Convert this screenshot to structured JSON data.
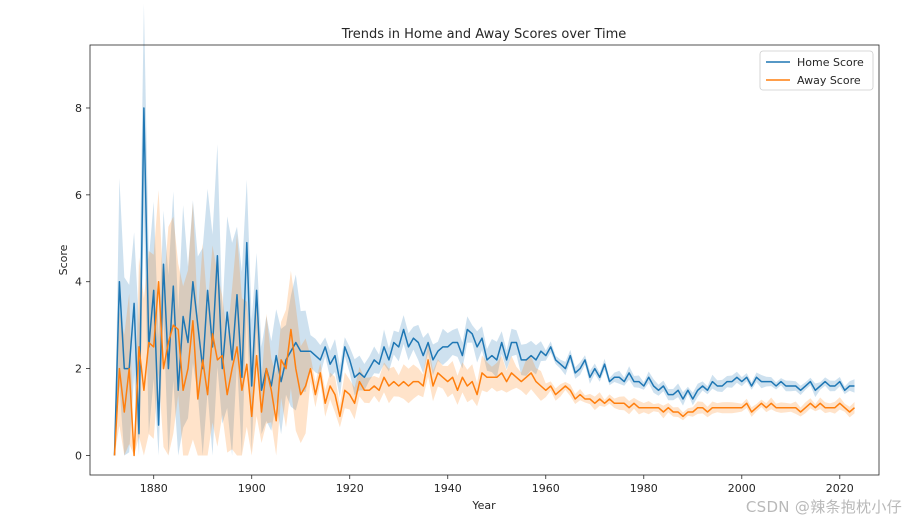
{
  "chart_data": {
    "type": "line",
    "title": "Trends in Home and Away Scores over Time",
    "xlabel": "Year",
    "ylabel": "Score",
    "xlim": [
      1867,
      2028
    ],
    "ylim": [
      -0.45,
      9.45
    ],
    "xticks": [
      1880,
      1900,
      1920,
      1940,
      1960,
      1980,
      2000,
      2020
    ],
    "yticks": [
      0,
      2,
      4,
      6,
      8
    ],
    "grid": false,
    "legend_position": "top-right",
    "series": [
      {
        "name": "Home Score",
        "color": "#1f77b4",
        "band_color": "#1f77b4",
        "points": [
          [
            1872,
            0.0
          ],
          [
            1873,
            4.0
          ],
          [
            1874,
            2.0
          ],
          [
            1875,
            2.0
          ],
          [
            1876,
            3.5
          ],
          [
            1877,
            0.5
          ],
          [
            1878,
            8.0
          ],
          [
            1879,
            2.5
          ],
          [
            1880,
            3.8
          ],
          [
            1881,
            0.7
          ],
          [
            1882,
            4.4
          ],
          [
            1883,
            2.0
          ],
          [
            1884,
            3.9
          ],
          [
            1885,
            1.5
          ],
          [
            1886,
            3.2
          ],
          [
            1887,
            2.6
          ],
          [
            1888,
            4.0
          ],
          [
            1889,
            3.0
          ],
          [
            1890,
            2.0
          ],
          [
            1891,
            3.8
          ],
          [
            1892,
            2.5
          ],
          [
            1893,
            4.6
          ],
          [
            1894,
            2.0
          ],
          [
            1895,
            3.3
          ],
          [
            1896,
            2.2
          ],
          [
            1897,
            3.7
          ],
          [
            1898,
            1.8
          ],
          [
            1899,
            4.9
          ],
          [
            1900,
            1.6
          ],
          [
            1901,
            3.8
          ],
          [
            1902,
            1.5
          ],
          [
            1903,
            2.0
          ],
          [
            1904,
            1.6
          ],
          [
            1905,
            2.3
          ],
          [
            1906,
            1.7
          ],
          [
            1907,
            2.2
          ],
          [
            1908,
            2.4
          ],
          [
            1909,
            2.6
          ],
          [
            1910,
            2.4
          ],
          [
            1911,
            2.4
          ],
          [
            1912,
            2.4
          ],
          [
            1913,
            2.3
          ],
          [
            1914,
            2.2
          ],
          [
            1915,
            2.5
          ],
          [
            1916,
            2.1
          ],
          [
            1917,
            2.3
          ],
          [
            1918,
            1.7
          ],
          [
            1919,
            2.5
          ],
          [
            1920,
            2.2
          ],
          [
            1921,
            1.8
          ],
          [
            1922,
            1.9
          ],
          [
            1923,
            1.8
          ],
          [
            1924,
            2.0
          ],
          [
            1925,
            2.2
          ],
          [
            1926,
            2.1
          ],
          [
            1927,
            2.5
          ],
          [
            1928,
            2.2
          ],
          [
            1929,
            2.6
          ],
          [
            1930,
            2.5
          ],
          [
            1931,
            2.9
          ],
          [
            1932,
            2.5
          ],
          [
            1933,
            2.7
          ],
          [
            1934,
            2.6
          ],
          [
            1935,
            2.3
          ],
          [
            1936,
            2.6
          ],
          [
            1937,
            2.2
          ],
          [
            1938,
            2.4
          ],
          [
            1939,
            2.5
          ],
          [
            1940,
            2.5
          ],
          [
            1941,
            2.6
          ],
          [
            1942,
            2.6
          ],
          [
            1943,
            2.3
          ],
          [
            1944,
            2.9
          ],
          [
            1945,
            2.8
          ],
          [
            1946,
            2.5
          ],
          [
            1947,
            2.7
          ],
          [
            1948,
            2.2
          ],
          [
            1949,
            2.3
          ],
          [
            1950,
            2.2
          ],
          [
            1951,
            2.6
          ],
          [
            1952,
            2.2
          ],
          [
            1953,
            2.6
          ],
          [
            1954,
            2.6
          ],
          [
            1955,
            2.2
          ],
          [
            1956,
            2.2
          ],
          [
            1957,
            2.3
          ],
          [
            1958,
            2.2
          ],
          [
            1959,
            2.4
          ],
          [
            1960,
            2.3
          ],
          [
            1961,
            2.5
          ],
          [
            1962,
            2.2
          ],
          [
            1963,
            2.1
          ],
          [
            1964,
            2.0
          ],
          [
            1965,
            2.3
          ],
          [
            1966,
            1.9
          ],
          [
            1967,
            2.0
          ],
          [
            1968,
            2.2
          ],
          [
            1969,
            1.8
          ],
          [
            1970,
            2.0
          ],
          [
            1971,
            1.8
          ],
          [
            1972,
            2.1
          ],
          [
            1973,
            1.7
          ],
          [
            1974,
            1.8
          ],
          [
            1975,
            1.8
          ],
          [
            1976,
            1.7
          ],
          [
            1977,
            1.9
          ],
          [
            1978,
            1.7
          ],
          [
            1979,
            1.7
          ],
          [
            1980,
            1.6
          ],
          [
            1981,
            1.8
          ],
          [
            1982,
            1.6
          ],
          [
            1983,
            1.5
          ],
          [
            1984,
            1.6
          ],
          [
            1985,
            1.4
          ],
          [
            1986,
            1.4
          ],
          [
            1987,
            1.5
          ],
          [
            1988,
            1.3
          ],
          [
            1989,
            1.5
          ],
          [
            1990,
            1.3
          ],
          [
            1991,
            1.5
          ],
          [
            1992,
            1.6
          ],
          [
            1993,
            1.5
          ],
          [
            1994,
            1.7
          ],
          [
            1995,
            1.6
          ],
          [
            1996,
            1.6
          ],
          [
            1997,
            1.7
          ],
          [
            1998,
            1.7
          ],
          [
            1999,
            1.8
          ],
          [
            2000,
            1.7
          ],
          [
            2001,
            1.8
          ],
          [
            2002,
            1.6
          ],
          [
            2003,
            1.8
          ],
          [
            2004,
            1.7
          ],
          [
            2005,
            1.7
          ],
          [
            2006,
            1.7
          ],
          [
            2007,
            1.6
          ],
          [
            2008,
            1.7
          ],
          [
            2009,
            1.6
          ],
          [
            2010,
            1.6
          ],
          [
            2011,
            1.6
          ],
          [
            2012,
            1.5
          ],
          [
            2013,
            1.6
          ],
          [
            2014,
            1.7
          ],
          [
            2015,
            1.5
          ],
          [
            2016,
            1.6
          ],
          [
            2017,
            1.7
          ],
          [
            2018,
            1.6
          ],
          [
            2019,
            1.6
          ],
          [
            2020,
            1.7
          ],
          [
            2021,
            1.5
          ],
          [
            2022,
            1.6
          ],
          [
            2023,
            1.6
          ]
        ]
      },
      {
        "name": "Away Score",
        "color": "#ff7f0e",
        "band_color": "#ff7f0e",
        "points": [
          [
            1872,
            0.0
          ],
          [
            1873,
            2.0
          ],
          [
            1874,
            1.0
          ],
          [
            1875,
            2.0
          ],
          [
            1876,
            0.0
          ],
          [
            1877,
            2.5
          ],
          [
            1878,
            1.5
          ],
          [
            1879,
            2.6
          ],
          [
            1880,
            2.5
          ],
          [
            1881,
            4.0
          ],
          [
            1882,
            2.0
          ],
          [
            1883,
            2.6
          ],
          [
            1884,
            3.0
          ],
          [
            1885,
            2.9
          ],
          [
            1886,
            1.5
          ],
          [
            1887,
            2.0
          ],
          [
            1888,
            3.1
          ],
          [
            1889,
            1.3
          ],
          [
            1890,
            2.2
          ],
          [
            1891,
            1.4
          ],
          [
            1892,
            2.8
          ],
          [
            1893,
            2.2
          ],
          [
            1894,
            2.3
          ],
          [
            1895,
            1.4
          ],
          [
            1896,
            2.0
          ],
          [
            1897,
            2.5
          ],
          [
            1898,
            1.5
          ],
          [
            1899,
            2.1
          ],
          [
            1900,
            0.9
          ],
          [
            1901,
            2.3
          ],
          [
            1902,
            1.0
          ],
          [
            1903,
            2.0
          ],
          [
            1904,
            1.5
          ],
          [
            1905,
            0.8
          ],
          [
            1906,
            2.2
          ],
          [
            1907,
            2.0
          ],
          [
            1908,
            2.9
          ],
          [
            1909,
            2.0
          ],
          [
            1910,
            1.4
          ],
          [
            1911,
            1.6
          ],
          [
            1912,
            2.0
          ],
          [
            1913,
            1.4
          ],
          [
            1914,
            1.9
          ],
          [
            1915,
            1.2
          ],
          [
            1916,
            1.6
          ],
          [
            1917,
            1.4
          ],
          [
            1918,
            0.9
          ],
          [
            1919,
            1.5
          ],
          [
            1920,
            1.4
          ],
          [
            1921,
            1.2
          ],
          [
            1922,
            1.7
          ],
          [
            1923,
            1.5
          ],
          [
            1924,
            1.5
          ],
          [
            1925,
            1.6
          ],
          [
            1926,
            1.5
          ],
          [
            1927,
            1.8
          ],
          [
            1928,
            1.6
          ],
          [
            1929,
            1.7
          ],
          [
            1930,
            1.6
          ],
          [
            1931,
            1.7
          ],
          [
            1932,
            1.6
          ],
          [
            1933,
            1.7
          ],
          [
            1934,
            1.7
          ],
          [
            1935,
            1.6
          ],
          [
            1936,
            2.2
          ],
          [
            1937,
            1.6
          ],
          [
            1938,
            1.9
          ],
          [
            1939,
            1.8
          ],
          [
            1940,
            1.7
          ],
          [
            1941,
            1.8
          ],
          [
            1942,
            1.5
          ],
          [
            1943,
            1.8
          ],
          [
            1944,
            1.6
          ],
          [
            1945,
            1.7
          ],
          [
            1946,
            1.4
          ],
          [
            1947,
            1.9
          ],
          [
            1948,
            1.8
          ],
          [
            1949,
            1.8
          ],
          [
            1950,
            1.8
          ],
          [
            1951,
            1.9
          ],
          [
            1952,
            1.7
          ],
          [
            1953,
            1.9
          ],
          [
            1954,
            1.8
          ],
          [
            1955,
            1.7
          ],
          [
            1956,
            1.8
          ],
          [
            1957,
            1.9
          ],
          [
            1958,
            1.7
          ],
          [
            1959,
            1.6
          ],
          [
            1960,
            1.5
          ],
          [
            1961,
            1.6
          ],
          [
            1962,
            1.4
          ],
          [
            1963,
            1.5
          ],
          [
            1964,
            1.6
          ],
          [
            1965,
            1.5
          ],
          [
            1966,
            1.3
          ],
          [
            1967,
            1.4
          ],
          [
            1968,
            1.3
          ],
          [
            1969,
            1.3
          ],
          [
            1970,
            1.2
          ],
          [
            1971,
            1.3
          ],
          [
            1972,
            1.2
          ],
          [
            1973,
            1.3
          ],
          [
            1974,
            1.2
          ],
          [
            1975,
            1.2
          ],
          [
            1976,
            1.2
          ],
          [
            1977,
            1.1
          ],
          [
            1978,
            1.2
          ],
          [
            1979,
            1.1
          ],
          [
            1980,
            1.1
          ],
          [
            1981,
            1.1
          ],
          [
            1982,
            1.1
          ],
          [
            1983,
            1.1
          ],
          [
            1984,
            1.0
          ],
          [
            1985,
            1.1
          ],
          [
            1986,
            1.0
          ],
          [
            1987,
            1.0
          ],
          [
            1988,
            0.9
          ],
          [
            1989,
            1.0
          ],
          [
            1990,
            1.0
          ],
          [
            1991,
            1.1
          ],
          [
            1992,
            1.1
          ],
          [
            1993,
            1.0
          ],
          [
            1994,
            1.1
          ],
          [
            1995,
            1.1
          ],
          [
            1996,
            1.1
          ],
          [
            1997,
            1.1
          ],
          [
            1998,
            1.1
          ],
          [
            1999,
            1.1
          ],
          [
            2000,
            1.1
          ],
          [
            2001,
            1.2
          ],
          [
            2002,
            1.0
          ],
          [
            2003,
            1.1
          ],
          [
            2004,
            1.2
          ],
          [
            2005,
            1.1
          ],
          [
            2006,
            1.2
          ],
          [
            2007,
            1.1
          ],
          [
            2008,
            1.1
          ],
          [
            2009,
            1.1
          ],
          [
            2010,
            1.1
          ],
          [
            2011,
            1.1
          ],
          [
            2012,
            1.0
          ],
          [
            2013,
            1.1
          ],
          [
            2014,
            1.2
          ],
          [
            2015,
            1.1
          ],
          [
            2016,
            1.2
          ],
          [
            2017,
            1.1
          ],
          [
            2018,
            1.1
          ],
          [
            2019,
            1.1
          ],
          [
            2020,
            1.2
          ],
          [
            2021,
            1.1
          ],
          [
            2022,
            1.0
          ],
          [
            2023,
            1.1
          ]
        ]
      }
    ]
  },
  "watermark": "CSDN @辣条抱枕小仔"
}
